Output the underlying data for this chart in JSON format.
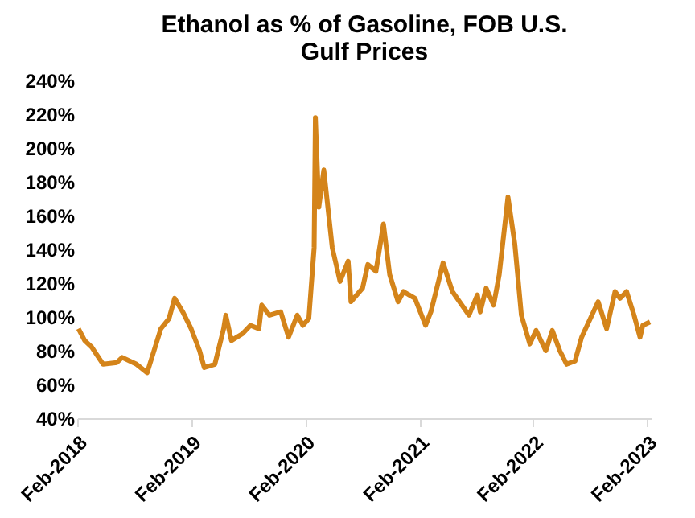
{
  "chart_data": {
    "type": "line",
    "title": "Ethanol as % of Gasoline, FOB U.S. Gulf Prices",
    "x": [
      "2018-02-05",
      "2018-02-25",
      "2018-03-20",
      "2018-04-25",
      "2018-06-08",
      "2018-06-25",
      "2018-08-10",
      "2018-09-13",
      "2018-10-27",
      "2018-11-22",
      "2018-12-10",
      "2019-01-05",
      "2019-02-01",
      "2019-02-28",
      "2019-03-15",
      "2019-04-18",
      "2019-05-16",
      "2019-05-23",
      "2019-06-10",
      "2019-07-15",
      "2019-08-10",
      "2019-09-06",
      "2019-09-15",
      "2019-10-10",
      "2019-11-15",
      "2019-12-10",
      "2020-01-07",
      "2020-01-25",
      "2020-02-13",
      "2020-03-01",
      "2020-03-05",
      "2020-03-16",
      "2020-04-01",
      "2020-04-28",
      "2020-05-23",
      "2020-06-18",
      "2020-06-27",
      "2020-08-03",
      "2020-08-20",
      "2020-09-15",
      "2020-10-09",
      "2020-10-29",
      "2020-11-25",
      "2020-12-12",
      "2021-01-18",
      "2021-02-21",
      "2021-03-10",
      "2021-04-06",
      "2021-04-18",
      "2021-05-18",
      "2021-06-25",
      "2021-07-10",
      "2021-08-06",
      "2021-08-15",
      "2021-09-03",
      "2021-09-27",
      "2021-10-15",
      "2021-11-12",
      "2021-12-04",
      "2021-12-25",
      "2022-01-21",
      "2022-02-10",
      "2022-03-13",
      "2022-04-03",
      "2022-04-27",
      "2022-05-19",
      "2022-06-15",
      "2022-07-06",
      "2022-08-28",
      "2022-09-24",
      "2022-10-21",
      "2022-11-06",
      "2022-11-27",
      "2022-12-21",
      "2023-01-09",
      "2023-01-18",
      "2023-02-10"
    ],
    "series": [
      {
        "color": "#d4841a",
        "values": [
          93,
          86,
          82,
          72,
          73,
          76,
          72,
          67,
          93,
          99,
          111,
          103,
          93,
          80,
          70,
          72,
          93,
          101,
          86,
          90,
          95,
          93,
          107,
          101,
          103,
          88,
          101,
          95,
          99,
          141,
          218,
          165,
          187,
          141,
          121,
          133,
          109,
          117,
          131,
          127,
          155,
          125,
          109,
          115,
          111,
          95,
          103,
          123,
          132,
          115,
          105,
          101,
          113,
          103,
          117,
          107,
          125,
          171,
          143,
          101,
          84,
          92,
          80,
          92,
          80,
          72,
          74,
          88,
          109,
          93,
          115,
          111,
          115,
          101,
          88,
          95,
          97
        ]
      }
    ],
    "xlim": [
      "2018-02-01",
      "2023-02-15"
    ],
    "xticks": [
      {
        "value": "2018-02-01",
        "label": "Feb-2018"
      },
      {
        "value": "2019-02-01",
        "label": "Feb-2019"
      },
      {
        "value": "2020-02-01",
        "label": "Feb-2020"
      },
      {
        "value": "2021-02-01",
        "label": "Feb-2021"
      },
      {
        "value": "2022-02-01",
        "label": "Feb-2022"
      },
      {
        "value": "2023-02-01",
        "label": "Feb-2023"
      }
    ],
    "ylim": [
      40,
      240
    ],
    "yticks": [
      {
        "value": 40,
        "label": "40%"
      },
      {
        "value": 60,
        "label": "60%"
      },
      {
        "value": 80,
        "label": "80%"
      },
      {
        "value": 100,
        "label": "100%"
      },
      {
        "value": 120,
        "label": "120%"
      },
      {
        "value": 140,
        "label": "140%"
      },
      {
        "value": 160,
        "label": "160%"
      },
      {
        "value": 180,
        "label": "180%"
      },
      {
        "value": 200,
        "label": "200%"
      },
      {
        "value": 220,
        "label": "220%"
      },
      {
        "value": 240,
        "label": "240%"
      }
    ],
    "grid": false,
    "legend": false,
    "line_style": "solid"
  }
}
